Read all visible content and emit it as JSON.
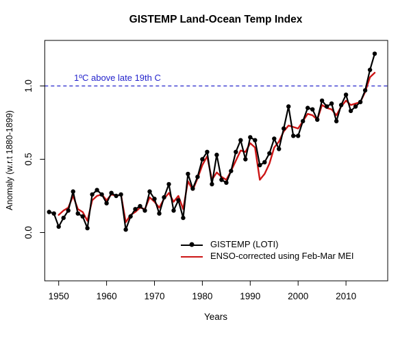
{
  "chart_data": {
    "type": "line",
    "title": "GISTEMP Land-Ocean Temp Index",
    "xlabel": "Years",
    "ylabel": "Anomaly (w.r.t 1880-1899)",
    "xlim": [
      1947,
      2019
    ],
    "ylim": [
      -0.33,
      1.31
    ],
    "grid": false,
    "x_tick_labels": [
      "1950",
      "1960",
      "1970",
      "1980",
      "1990",
      "2000",
      "2010"
    ],
    "x_tick_values": [
      1950,
      1960,
      1970,
      1980,
      1990,
      2000,
      2010
    ],
    "y_tick_labels": [
      "0.0",
      "0.5",
      "1.0"
    ],
    "y_tick_values": [
      0.0,
      0.5,
      1.0
    ],
    "reference_line": {
      "value": 1.0,
      "label": "1ºC above late 19th C",
      "color": "#2323cc",
      "style": "dashed"
    },
    "legend_position": "inside-bottom-center",
    "series": [
      {
        "name": "GISTEMP (LOTI)",
        "color": "#000000",
        "marker": "filled-circle",
        "line_width": 2.2,
        "x_start": 1948,
        "x_end": 2016,
        "values": [
          0.14,
          0.13,
          0.04,
          0.1,
          0.15,
          0.28,
          0.13,
          0.11,
          0.03,
          0.26,
          0.29,
          0.26,
          0.2,
          0.27,
          0.25,
          0.26,
          0.02,
          0.11,
          0.16,
          0.18,
          0.15,
          0.28,
          0.23,
          0.13,
          0.24,
          0.33,
          0.15,
          0.22,
          0.1,
          0.4,
          0.3,
          0.38,
          0.5,
          0.55,
          0.33,
          0.53,
          0.36,
          0.34,
          0.42,
          0.55,
          0.63,
          0.5,
          0.65,
          0.63,
          0.46,
          0.48,
          0.54,
          0.64,
          0.57,
          0.71,
          0.86,
          0.66,
          0.66,
          0.76,
          0.85,
          0.84,
          0.77,
          0.9,
          0.86,
          0.88,
          0.76,
          0.87,
          0.94,
          0.83,
          0.86,
          0.89,
          0.97,
          1.11,
          1.22
        ]
      },
      {
        "name": "ENSO-corrected using Feb-Mar MEI",
        "color": "#cc1414",
        "marker": "none",
        "line_width": 2.4,
        "x_start": 1950,
        "x_end": 2016,
        "values": [
          0.12,
          0.15,
          0.17,
          0.25,
          0.16,
          0.14,
          0.08,
          0.22,
          0.25,
          0.26,
          0.22,
          0.26,
          0.25,
          0.26,
          0.07,
          0.12,
          0.14,
          0.17,
          0.16,
          0.24,
          0.21,
          0.17,
          0.23,
          0.27,
          0.21,
          0.25,
          0.16,
          0.35,
          0.29,
          0.37,
          0.46,
          0.52,
          0.36,
          0.41,
          0.38,
          0.36,
          0.42,
          0.49,
          0.56,
          0.55,
          0.61,
          0.58,
          0.36,
          0.4,
          0.47,
          0.58,
          0.62,
          0.69,
          0.73,
          0.72,
          0.71,
          0.76,
          0.81,
          0.8,
          0.77,
          0.87,
          0.85,
          0.84,
          0.8,
          0.86,
          0.9,
          0.87,
          0.88,
          0.89,
          0.96,
          1.06,
          1.09
        ]
      }
    ]
  }
}
